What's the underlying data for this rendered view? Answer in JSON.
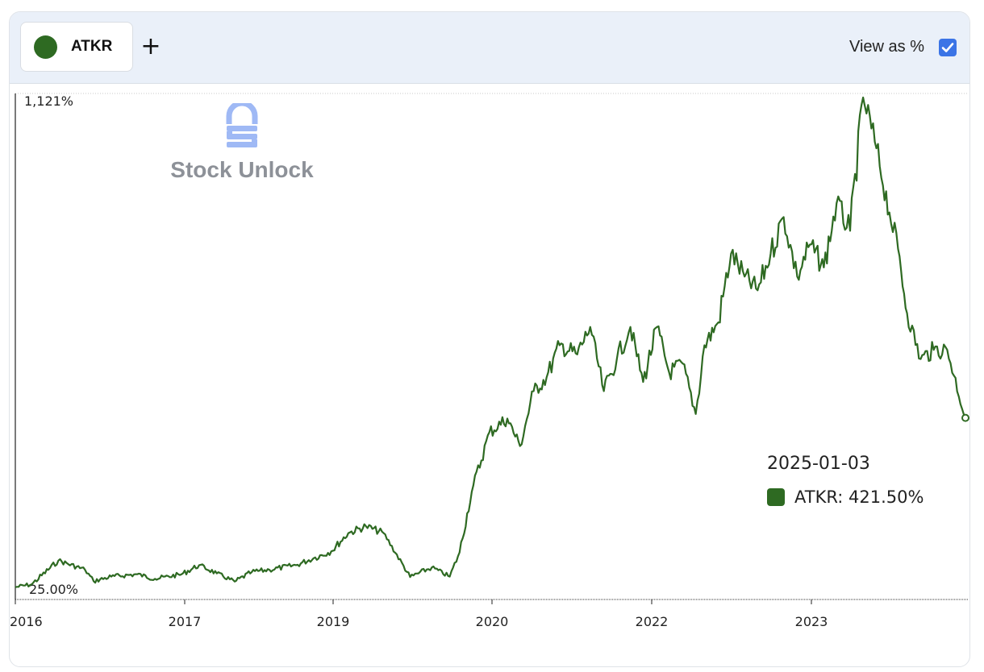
{
  "toolbar": {
    "ticker": "ATKR",
    "add_label": "+",
    "view_as_label": "View as %",
    "view_as_checked": true
  },
  "colors": {
    "series": "#2e6a22",
    "checkbox": "#3b74e6",
    "toolbar_bg": "#eaf0f9"
  },
  "watermark": {
    "text": "Stock Unlock",
    "logo_icon": "stock-unlock-logo-icon"
  },
  "tooltip": {
    "date": "2025-01-03",
    "label": "ATKR: 421.50%"
  },
  "chart_data": {
    "type": "line",
    "title": "",
    "xlabel": "",
    "ylabel": "",
    "x_ticks": [
      "2016",
      "2017",
      "2019",
      "2020",
      "2022",
      "2023"
    ],
    "y_tick_labels": [
      "1,121%",
      "25.00%"
    ],
    "ylim": [
      25,
      1121
    ],
    "xlim": [
      "2016-01-04",
      "2025-01-03"
    ],
    "grid": false,
    "series": [
      {
        "name": "ATKR",
        "x": [
          "2016-01-04",
          "2016-03-01",
          "2016-06-01",
          "2016-09-01",
          "2016-10-01",
          "2016-12-01",
          "2017-03-01",
          "2017-05-01",
          "2017-08-01",
          "2017-10-01",
          "2017-12-01",
          "2018-02-01",
          "2018-04-01",
          "2018-06-01",
          "2018-09-01",
          "2018-11-01",
          "2019-01-01",
          "2019-03-01",
          "2019-05-01",
          "2019-07-01",
          "2019-10-01",
          "2019-12-15",
          "2020-02-15",
          "2020-03-20",
          "2020-05-01",
          "2020-07-01",
          "2020-09-01",
          "2020-10-15",
          "2020-12-01",
          "2021-01-15",
          "2021-03-01",
          "2021-05-01",
          "2021-06-15",
          "2021-08-01",
          "2021-09-15",
          "2021-11-01",
          "2021-12-15",
          "2022-02-01",
          "2022-03-15",
          "2022-05-01",
          "2022-06-15",
          "2022-07-15",
          "2022-09-01",
          "2022-10-15",
          "2022-12-01",
          "2023-01-15",
          "2023-03-01",
          "2023-04-15",
          "2023-06-01",
          "2023-07-15",
          "2023-09-01",
          "2023-10-15",
          "2023-12-01",
          "2024-01-15",
          "2024-03-01",
          "2024-04-15",
          "2024-05-15",
          "2024-06-15",
          "2024-08-01",
          "2024-09-15",
          "2024-11-01",
          "2025-01-03"
        ],
        "values": [
          52,
          58,
          110,
          90,
          65,
          75,
          80,
          70,
          80,
          100,
          82,
          64,
          85,
          90,
          100,
          115,
          130,
          170,
          185,
          170,
          74,
          95,
          75,
          128,
          260,
          390,
          420,
          360,
          480,
          510,
          580,
          560,
          620,
          480,
          550,
          620,
          500,
          620,
          520,
          540,
          430,
          580,
          630,
          780,
          730,
          700,
          780,
          860,
          730,
          800,
          750,
          890,
          830,
          1121,
          1010,
          870,
          790,
          650,
          550,
          570,
          570,
          421.5
        ]
      }
    ]
  }
}
